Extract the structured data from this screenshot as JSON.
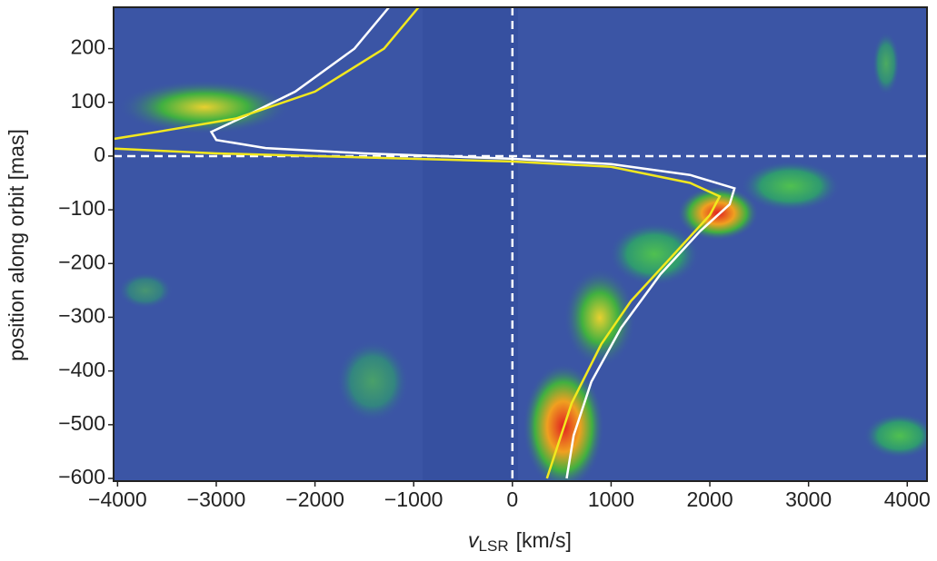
{
  "chart_data": {
    "type": "line",
    "xlabel": {
      "symbol": "v",
      "subscript": "LSR",
      "unit": "[km/s]"
    },
    "ylabel": "position along orbit [mas]",
    "xlim": [
      -4040,
      4200
    ],
    "ylim": [
      -605,
      277
    ],
    "xticks": [
      {
        "value": -4000,
        "label": "−4000"
      },
      {
        "value": -3000,
        "label": "−3000"
      },
      {
        "value": -2000,
        "label": "−2000"
      },
      {
        "value": -1000,
        "label": "−1000"
      },
      0,
      1000,
      2000,
      3000,
      4000
    ],
    "yticks": [
      {
        "value": -600,
        "label": "−600"
      },
      {
        "value": -500,
        "label": "−500"
      },
      {
        "value": -400,
        "label": "−400"
      },
      {
        "value": -300,
        "label": "−300"
      },
      {
        "value": -200,
        "label": "−200"
      },
      {
        "value": -100,
        "label": "−100"
      },
      0,
      100,
      200
    ],
    "hlines": [
      0
    ],
    "vlines": [
      0
    ],
    "background": "#3b55a5",
    "series": [
      {
        "color": "#ffffff",
        "x": [
          -1250,
          -1600,
          -2200,
          -2700,
          -3050,
          -3000,
          -2500,
          -1500,
          0,
          1000,
          1800,
          2250,
          2200,
          1900,
          1500,
          1100,
          800,
          620,
          550
        ],
        "values": [
          277,
          200,
          120,
          75,
          45,
          30,
          15,
          5,
          -5,
          -15,
          -35,
          -60,
          -90,
          -140,
          -220,
          -320,
          -420,
          -520,
          -600
        ]
      },
      {
        "color": "#f2e81e",
        "x": [
          -950,
          -1300,
          -2000,
          -2800,
          -3600,
          -4040,
          null,
          -4040,
          -3000,
          0,
          1000,
          1800,
          2100,
          2000,
          1600,
          1200,
          900,
          600,
          350
        ],
        "values": [
          277,
          200,
          120,
          70,
          45,
          32,
          null,
          14,
          5,
          -10,
          -20,
          -50,
          -75,
          -110,
          -190,
          -270,
          -350,
          -460,
          -600
        ]
      }
    ]
  }
}
